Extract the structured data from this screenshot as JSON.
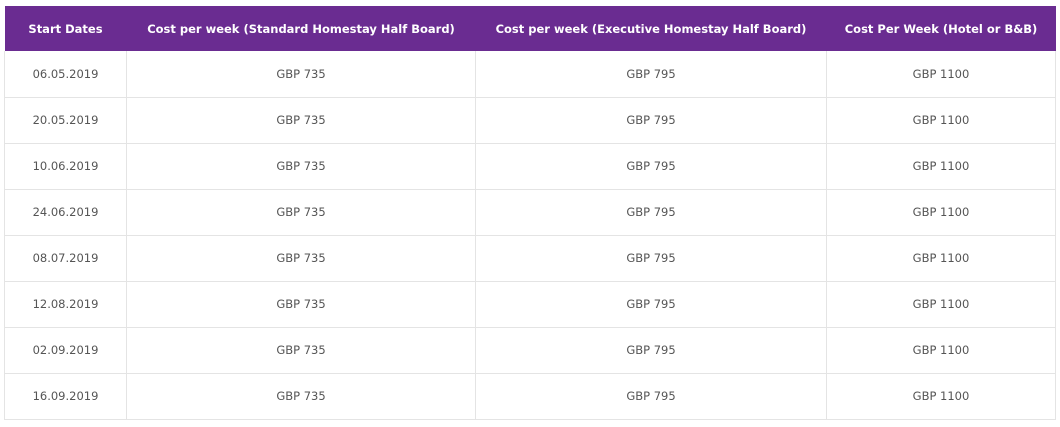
{
  "table": {
    "headers": [
      "Start Dates",
      "Cost per week (Standard Homestay Half Board)",
      "Cost per week (Executive Homestay Half Board)",
      "Cost Per Week (Hotel or B&B)"
    ],
    "rows": [
      [
        "06.05.2019",
        "GBP 735",
        "GBP 795",
        "GBP 1100"
      ],
      [
        "20.05.2019",
        "GBP 735",
        "GBP 795",
        "GBP 1100"
      ],
      [
        "10.06.2019",
        "GBP 735",
        "GBP 795",
        "GBP 1100"
      ],
      [
        "24.06.2019",
        "GBP 735",
        "GBP 795",
        "GBP 1100"
      ],
      [
        "08.07.2019",
        "GBP 735",
        "GBP 795",
        "GBP 1100"
      ],
      [
        "12.08.2019",
        "GBP 735",
        "GBP 795",
        "GBP 1100"
      ],
      [
        "02.09.2019",
        "GBP 735",
        "GBP 795",
        "GBP 1100"
      ],
      [
        "16.09.2019",
        "GBP 735",
        "GBP 795",
        "GBP 1100"
      ]
    ]
  },
  "colors": {
    "header_bg": "#6a2c91",
    "header_text": "#ffffff",
    "cell_text": "#555555",
    "border": "#e4e4e4"
  }
}
